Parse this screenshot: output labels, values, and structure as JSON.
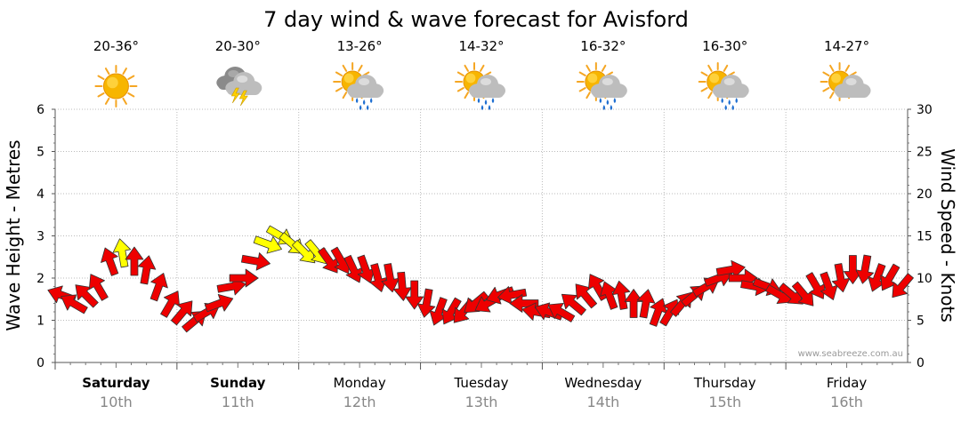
{
  "chart_data": {
    "type": "line",
    "title": "7 day wind & wave forecast for Avisford",
    "ylabel_left": "Wave Height - Metres",
    "ylabel_right": "Wind Speed - Knots",
    "ylim_left": [
      0,
      6
    ],
    "ylim_right": [
      0,
      30
    ],
    "yticks_left": [
      "0",
      "1",
      "2",
      "3",
      "4",
      "5",
      "6"
    ],
    "yticks_right": [
      "0",
      "5",
      "10",
      "15",
      "20",
      "25",
      "30"
    ],
    "grid": true,
    "credit": "www.seabreeze.com.au",
    "days": [
      {
        "name": "Saturday",
        "date": "10th",
        "bold": true,
        "temp": "20-36°",
        "icon": "sunny-icon"
      },
      {
        "name": "Sunday",
        "date": "11th",
        "bold": true,
        "temp": "20-30°",
        "icon": "thunderstorm-icon"
      },
      {
        "name": "Monday",
        "date": "12th",
        "bold": false,
        "temp": "13-26°",
        "icon": "sun-cloud-rain-icon"
      },
      {
        "name": "Tuesday",
        "date": "13th",
        "bold": false,
        "temp": "14-32°",
        "icon": "sun-cloud-rain-icon"
      },
      {
        "name": "Wednesday",
        "date": "14th",
        "bold": false,
        "temp": "16-32°",
        "icon": "sun-cloud-rain-icon"
      },
      {
        "name": "Thursday",
        "date": "15th",
        "bold": false,
        "temp": "16-30°",
        "icon": "sun-cloud-rain-icon"
      },
      {
        "name": "Friday",
        "date": "16th",
        "bold": false,
        "temp": "14-27°",
        "icon": "sun-cloud-icon"
      }
    ],
    "colors": {
      "strong_wind": "#ee0000",
      "light_wind": "#ffff00"
    },
    "wind_series": {
      "name": "Wind Speed (knots)",
      "day_offset": [
        0.0,
        0.1,
        0.2,
        0.3,
        0.4,
        0.5,
        0.6,
        0.7,
        0.8,
        0.9,
        1.0,
        1.1,
        1.2,
        1.3,
        1.4,
        1.5,
        1.6,
        1.7,
        1.8,
        1.9,
        2.0,
        2.1,
        2.2,
        2.3,
        2.4,
        2.5,
        2.6,
        2.7,
        2.8,
        2.9,
        3.0,
        3.1,
        3.2,
        3.3,
        3.4,
        3.5,
        3.6,
        3.7,
        3.8,
        3.9,
        4.0,
        4.1,
        4.2,
        4.3,
        4.4,
        4.5,
        4.6,
        4.7,
        4.8,
        4.9,
        5.0,
        5.1,
        5.2,
        5.3,
        5.4,
        5.5,
        5.6,
        5.7,
        5.8,
        5.9,
        6.0,
        6.1,
        6.2,
        6.3,
        6.4,
        6.5,
        6.6,
        6.7,
        6.8,
        6.9
      ],
      "knots": [
        8,
        7,
        8,
        9,
        12,
        13,
        12,
        11,
        9,
        7,
        6,
        5,
        6,
        7,
        9,
        10,
        12,
        14,
        15,
        14,
        13,
        13,
        12,
        12,
        11,
        11,
        10,
        10,
        9,
        8,
        7,
        6,
        6,
        6,
        7,
        7,
        8,
        8,
        7,
        6,
        6,
        6,
        7,
        8,
        9,
        8,
        8,
        7,
        7,
        6,
        6,
        7,
        8,
        9,
        10,
        11,
        10,
        9,
        9,
        8,
        8,
        8,
        9,
        9,
        10,
        11,
        11,
        10,
        10,
        9
      ],
      "direction_deg": [
        200,
        210,
        225,
        240,
        250,
        260,
        270,
        280,
        290,
        300,
        310,
        320,
        330,
        340,
        350,
        0,
        10,
        20,
        30,
        40,
        45,
        50,
        55,
        60,
        65,
        70,
        75,
        80,
        85,
        90,
        100,
        110,
        120,
        130,
        140,
        150,
        160,
        170,
        180,
        190,
        200,
        210,
        220,
        230,
        240,
        250,
        260,
        270,
        280,
        290,
        300,
        310,
        320,
        330,
        340,
        350,
        0,
        10,
        20,
        30,
        40,
        50,
        60,
        70,
        80,
        90,
        100,
        110,
        120,
        130
      ],
      "values_note": ""
    }
  }
}
